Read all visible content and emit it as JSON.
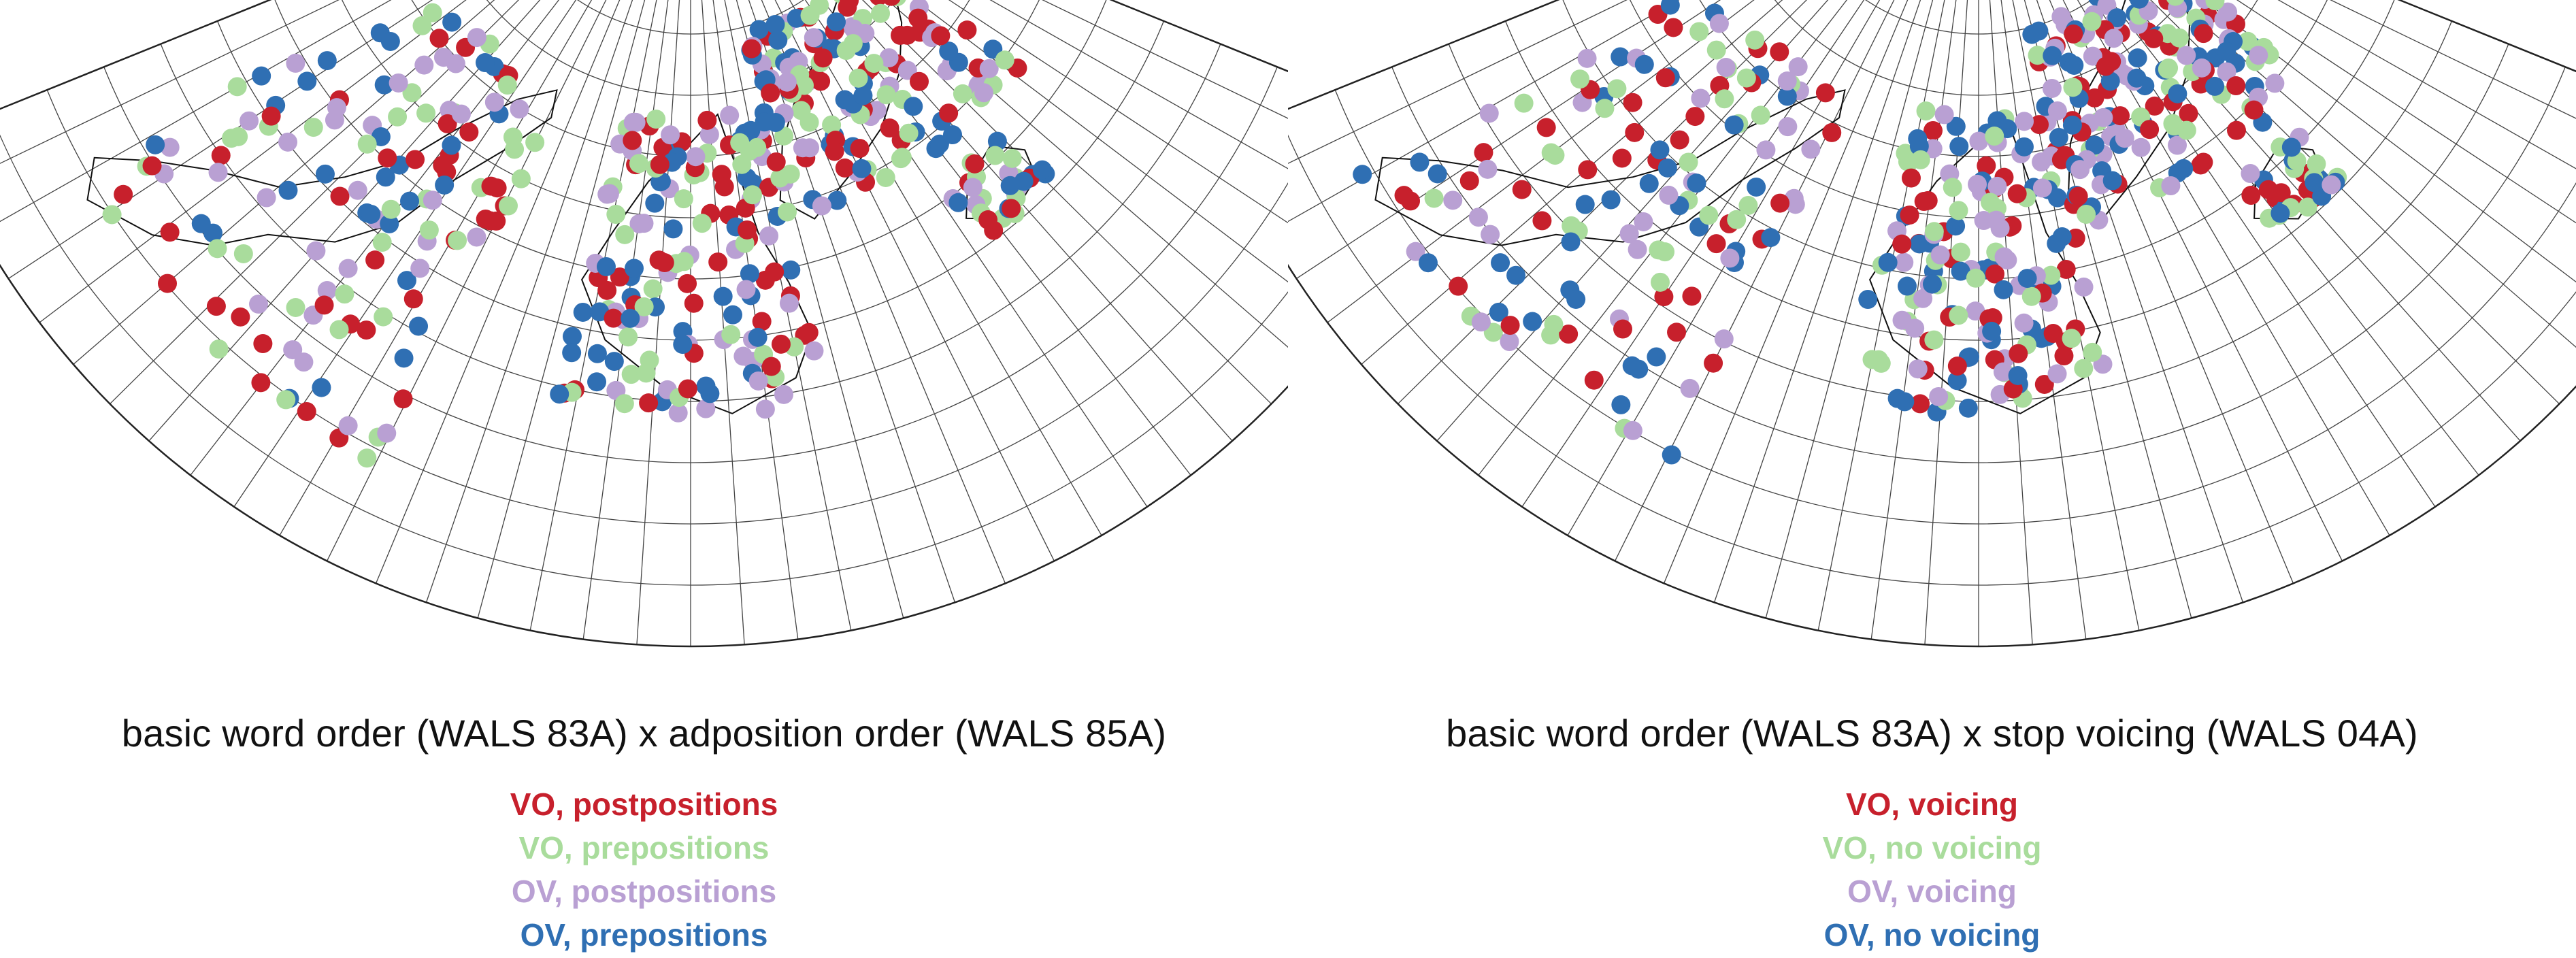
{
  "panels": [
    {
      "title": "basic word order (WALS 83A) x adposition order (WALS 85A)",
      "legend": [
        {
          "label": "VO, postpositions",
          "color": "#c7202c"
        },
        {
          "label": "VO, prepositions",
          "color": "#a9dc9c"
        },
        {
          "label": "OV, postpositions",
          "color": "#b9a0d3"
        },
        {
          "label": "OV, prepositions",
          "color": "#2f6fb3"
        }
      ]
    },
    {
      "title": "basic word order (WALS 83A) x stop voicing (WALS 04A)",
      "legend": [
        {
          "label": "VO, voicing",
          "color": "#c7202c"
        },
        {
          "label": "VO, no voicing",
          "color": "#a9dc9c"
        },
        {
          "label": "OV, voicing",
          "color": "#b9a0d3"
        },
        {
          "label": "OV, no voicing",
          "color": "#2f6fb3"
        }
      ]
    }
  ],
  "map": {
    "projection": "conic (half-annulus) world map",
    "graticule": true,
    "background": "#ffffff",
    "line_color": "#333333"
  }
}
